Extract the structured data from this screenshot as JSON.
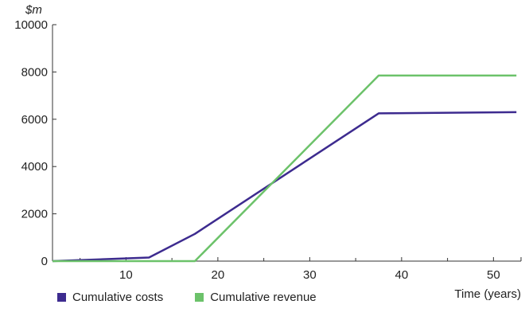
{
  "chart_data": {
    "type": "line",
    "title": "",
    "ylabel": "$m",
    "xlabel": "Time (years)",
    "xlim": [
      2,
      53
    ],
    "ylim": [
      0,
      10000
    ],
    "xticks": [
      10,
      20,
      30,
      40,
      50
    ],
    "yticks": [
      0,
      2000,
      4000,
      6000,
      8000,
      10000
    ],
    "grid": false,
    "legend_position": "bottom-left",
    "series": [
      {
        "name": "Cumulative costs",
        "color": "#3d2b8f",
        "x": [
          2,
          12.5,
          17.5,
          37.5,
          52.5
        ],
        "y": [
          0,
          150,
          1150,
          6250,
          6300
        ]
      },
      {
        "name": "Cumulative revenue",
        "color": "#6cc26a",
        "x": [
          2,
          17.5,
          37.5,
          52.5
        ],
        "y": [
          0,
          0,
          7850,
          7850
        ]
      }
    ]
  }
}
